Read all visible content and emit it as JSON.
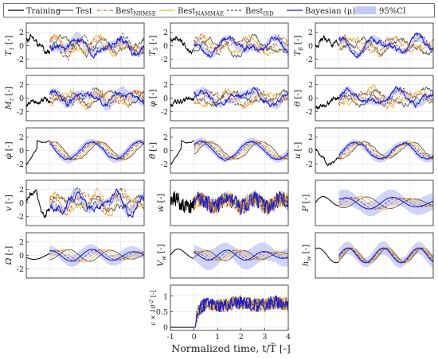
{
  "legend": {
    "entries": [
      {
        "key": "training",
        "label": "Training",
        "color": "#000000",
        "style": "solid"
      },
      {
        "key": "test",
        "label": "Test",
        "color": "#555555",
        "style": "solid"
      },
      {
        "key": "nrmse",
        "label": "Best",
        "sub": "NRMSE",
        "color": "#e8632a",
        "style": "dashdot"
      },
      {
        "key": "nammae",
        "label": "Best",
        "sub": "NAMMAE",
        "color": "#f0b840",
        "style": "solid"
      },
      {
        "key": "isd",
        "label": "Best",
        "sub": "ISD",
        "color": "#555555",
        "style": "dashed"
      },
      {
        "key": "bayes",
        "label": "Bayesian (μ)",
        "color": "#1a1ad4",
        "style": "solid"
      },
      {
        "key": "ci",
        "label": "95%CI",
        "color": "#a9b3f2",
        "style": "band"
      }
    ]
  },
  "xlabel": "Normalized time, t/T̃ [-]",
  "chart_data": [
    {
      "type": "line",
      "name": "T1",
      "ylabel": "T",
      "ysub": "1",
      "yunit": "[-]",
      "yticks": [
        2,
        0,
        -2
      ],
      "ylim": [
        -3.4,
        3.4
      ],
      "xlim": [
        -1,
        4
      ],
      "xticks": [],
      "hist": "gust",
      "future": "gust",
      "amp": 0.85,
      "freq": 2.2,
      "noise": 0.45,
      "ci": 0.7
    },
    {
      "type": "line",
      "name": "T5",
      "ylabel": "T",
      "ysub": "5",
      "yunit": "[-]",
      "yticks": [
        2,
        0,
        -2
      ],
      "ylim": [
        -3.4,
        3.4
      ],
      "xlim": [
        -1,
        4
      ],
      "xticks": [],
      "hist": "gust",
      "future": "gust",
      "amp": 0.9,
      "freq": 2.0,
      "noise": 0.35,
      "ci": 0.6
    },
    {
      "type": "line",
      "name": "T6",
      "ylabel": "T",
      "ysub": "6",
      "yunit": "[-]",
      "yticks": [
        2,
        0,
        -2
      ],
      "ylim": [
        -3.4,
        3.4
      ],
      "xlim": [
        -1,
        4
      ],
      "xticks": [],
      "hist": "gust",
      "future": "gust",
      "amp": 0.85,
      "freq": 2.1,
      "noise": 0.35,
      "ci": 0.6
    },
    {
      "type": "line",
      "name": "Mz",
      "ylabel": "M",
      "ysub": "z",
      "yunit": "[-]",
      "yticks": [
        2,
        0,
        -2
      ],
      "ylim": [
        -3.4,
        3.4
      ],
      "xlim": [
        -1,
        4
      ],
      "xticks": [],
      "hist": "lowgust",
      "future": "gust",
      "amp": 0.75,
      "freq": 2.4,
      "noise": 0.4,
      "ci": 0.7
    },
    {
      "type": "line",
      "name": "phi",
      "ylabel": "φ",
      "ysub": "",
      "yunit": "[-]",
      "yticks": [
        2,
        0,
        -2
      ],
      "ylim": [
        -3.4,
        3.4
      ],
      "xlim": [
        -1,
        4
      ],
      "xticks": [],
      "hist": "lowgust",
      "future": "gust",
      "amp": 0.8,
      "freq": 1.8,
      "noise": 0.35,
      "ci": 0.6
    },
    {
      "type": "line",
      "name": "theta",
      "ylabel": "θ",
      "ysub": "",
      "yunit": "[-]",
      "yticks": [
        2,
        0,
        -2
      ],
      "ylim": [
        -3.4,
        3.4
      ],
      "xlim": [
        -1,
        4
      ],
      "xticks": [],
      "hist": "lowgust",
      "future": "gust",
      "amp": 0.8,
      "freq": 1.9,
      "noise": 0.35,
      "ci": 0.6
    },
    {
      "type": "line",
      "name": "phidot",
      "ylabel": "φ̇",
      "ysub": "",
      "yunit": "[-]",
      "yticks": [
        2,
        0,
        -2
      ],
      "ylim": [
        -3.4,
        3.4
      ],
      "xlim": [
        -1,
        4
      ],
      "xticks": [],
      "hist": "riseflat",
      "future": "wave",
      "amp": 1.3,
      "freq": 1.3,
      "noise": 0.15,
      "ci": 0.6
    },
    {
      "type": "line",
      "name": "thetadot",
      "ylabel": "θ̇",
      "ysub": "",
      "yunit": "[-]",
      "yticks": [
        2,
        0,
        -2
      ],
      "ylim": [
        -3.4,
        3.4
      ],
      "xlim": [
        -1,
        4
      ],
      "xticks": [],
      "hist": "riseflat",
      "future": "wave",
      "amp": 1.3,
      "freq": 1.2,
      "noise": 0.15,
      "ci": 0.6
    },
    {
      "type": "line",
      "name": "u",
      "ylabel": "u",
      "ysub": "",
      "yunit": "[-]",
      "yticks": [
        2,
        0,
        -2
      ],
      "ylim": [
        -3.4,
        3.4
      ],
      "xlim": [
        -1,
        4
      ],
      "xticks": [],
      "hist": "gust",
      "future": "wave",
      "amp": 1.2,
      "freq": 1.3,
      "noise": 0.2,
      "ci": 0.6
    },
    {
      "type": "line",
      "name": "v",
      "ylabel": "v",
      "ysub": "",
      "yunit": "[-]",
      "yticks": [
        2,
        0,
        -2
      ],
      "ylim": [
        -3.4,
        3.4
      ],
      "xlim": [
        -1,
        4
      ],
      "xticks": [],
      "hist": "gust",
      "future": "gust",
      "amp": 1.0,
      "freq": 2.4,
      "noise": 0.45,
      "ci": 0.7
    },
    {
      "type": "line",
      "name": "w",
      "ylabel": "ẇ",
      "ysub": "",
      "yunit": "[-]",
      "yticks": [],
      "ylim": [
        -3.4,
        3.4
      ],
      "xlim": [
        -1,
        4
      ],
      "xticks": [],
      "hist": "noise",
      "future": "noise",
      "amp": 1.0,
      "freq": 5.5,
      "noise": 0.8,
      "ci": 0.4
    },
    {
      "type": "line",
      "name": "P",
      "ylabel": "P",
      "ysub": "",
      "yunit": "[-]",
      "yticks": [],
      "ylim": [
        -3.4,
        3.4
      ],
      "xlim": [
        -1,
        4
      ],
      "xticks": [],
      "hist": "decay",
      "future": "smooth",
      "amp": 0.7,
      "freq": 1.4,
      "noise": 0.0,
      "ci": 1.3
    },
    {
      "type": "line",
      "name": "Omega",
      "ylabel": "Ω",
      "ysub": "",
      "yunit": "[-]",
      "yticks": [
        2,
        0,
        -2
      ],
      "ylim": [
        -3.4,
        3.4
      ],
      "xlim": [
        -1,
        4
      ],
      "xticks": [],
      "hist": "smoothlow",
      "future": "smooth",
      "amp": 0.7,
      "freq": 1.6,
      "noise": 0.0,
      "ci": 0.9
    },
    {
      "type": "line",
      "name": "Vw",
      "ylabel": "V",
      "ysub": "w",
      "yunit": "[-]",
      "yticks": [],
      "ylim": [
        -3.4,
        3.4
      ],
      "xlim": [
        -1,
        4
      ],
      "xticks": [],
      "hist": "decay",
      "future": "smooth",
      "amp": 0.6,
      "freq": 1.8,
      "noise": 0.0,
      "ci": 1.5
    },
    {
      "type": "line",
      "name": "hw",
      "ylabel": "h",
      "ysub": "w",
      "yunit": "[-]",
      "yticks": [],
      "ylim": [
        -3.4,
        3.4
      ],
      "xlim": [
        -1,
        4
      ],
      "xticks": [],
      "hist": "sine",
      "future": "sine",
      "amp": 1.1,
      "freq": 1.4,
      "noise": 0.0,
      "ci": 1.0
    },
    {
      "type": "line",
      "name": "eps",
      "ylabel": "ε × 10",
      "ysub": "",
      "ysup": "-2",
      "yunit": "[-]",
      "yticks": [
        1,
        0.5,
        0
      ],
      "ylim": [
        -0.1,
        1.35
      ],
      "xlim": [
        -1,
        4
      ],
      "xticks": [
        -1,
        0,
        1,
        2,
        3,
        4
      ],
      "hist": "zero",
      "future": "error",
      "amp": 0.6,
      "freq": 4.0,
      "noise": 0.15,
      "ci": 0
    }
  ]
}
